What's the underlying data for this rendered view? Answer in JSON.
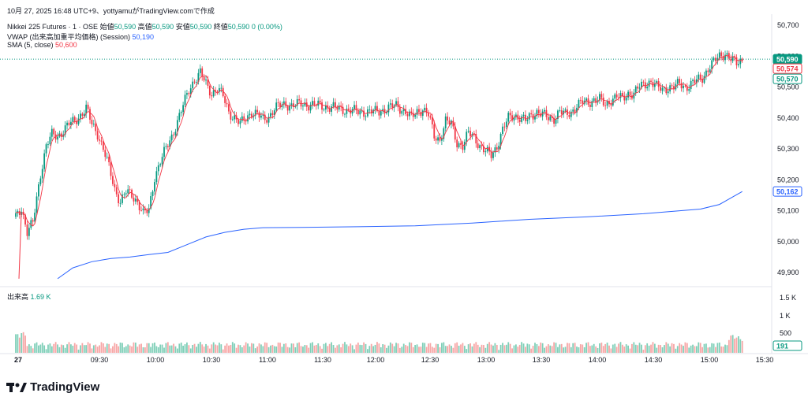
{
  "header": {
    "timestamp": "10月 27, 2025 16:48 UTC+9、yottyamuがTradingView.comで作成",
    "symbol": "Nikkei 225 Futures · 1 · OSE",
    "open_label": "始値",
    "open": "50,590",
    "high_label": "高値",
    "high": "50,590",
    "low_label": "安値",
    "low": "50,590",
    "close_label": "終値",
    "close": "50,590",
    "change": "0 (0.00%)",
    "vwap_label": "VWAP (出来高加重平均価格) (Session)",
    "vwap_value": "50,190",
    "sma_label": "SMA (5, close)",
    "sma_value": "50,600",
    "volume_label": "出来高",
    "volume_value": "1.69 K"
  },
  "brand": "TradingView",
  "colors": {
    "up": "#089981",
    "down": "#f23645",
    "vwap": "#2962ff",
    "sma": "#f23645"
  },
  "chart_data": {
    "type": "candlestick",
    "title": "Nikkei 225 Futures · 1 · OSE",
    "price_axis": {
      "ticks": [
        "50,700",
        "50,600",
        "50,500",
        "50,400",
        "50,300",
        "50,200",
        "50,100",
        "50,000",
        "49,900"
      ],
      "ylim": [
        49880,
        50715
      ]
    },
    "volume_axis": {
      "ticks": [
        "1.5 K",
        "1 K",
        "500"
      ]
    },
    "time_axis": [
      "27",
      "09:30",
      "10:00",
      "10:30",
      "11:00",
      "11:30",
      "12:00",
      "12:30",
      "13:00",
      "13:30",
      "14:00",
      "14:30",
      "15:00",
      "15:30"
    ],
    "badges": {
      "last_price": "50,590",
      "sma_tag": "50,574",
      "sma2_tag": "50,570",
      "vwap_tag": "50,162",
      "volume_tag": "191"
    },
    "close_path": [
      [
        "09:00",
        50080
      ],
      [
        "09:03",
        50110
      ],
      [
        "09:06",
        50030
      ],
      [
        "09:09",
        50060
      ],
      [
        "09:13",
        50220
      ],
      [
        "09:16",
        50310
      ],
      [
        "09:19",
        50345
      ],
      [
        "09:22",
        50340
      ],
      [
        "09:25",
        50360
      ],
      [
        "09:28",
        50380
      ],
      [
        "09:31",
        50390
      ],
      [
        "09:34",
        50410
      ],
      [
        "09:37",
        50430
      ],
      [
        "09:40",
        50380
      ],
      [
        "09:43",
        50350
      ],
      [
        "09:46",
        50300
      ],
      [
        "09:49",
        50240
      ],
      [
        "09:52",
        50170
      ],
      [
        "09:55",
        50130
      ],
      [
        "09:58",
        50160
      ],
      [
        "10:01",
        50150
      ],
      [
        "10:04",
        50130
      ],
      [
        "10:07",
        50090
      ],
      [
        "10:10",
        50100
      ],
      [
        "10:13",
        50210
      ],
      [
        "10:16",
        50260
      ],
      [
        "10:19",
        50300
      ],
      [
        "10:22",
        50340
      ],
      [
        "10:25",
        50390
      ],
      [
        "10:28",
        50440
      ],
      [
        "10:31",
        50490
      ],
      [
        "10:34",
        50525
      ],
      [
        "10:37",
        50545
      ],
      [
        "10:40",
        50510
      ],
      [
        "10:43",
        50480
      ],
      [
        "10:46",
        50495
      ],
      [
        "10:49",
        50470
      ],
      [
        "10:52",
        50420
      ],
      [
        "10:55",
        50400
      ],
      [
        "10:58",
        50380
      ],
      [
        "11:01",
        50400
      ],
      [
        "11:04",
        50420
      ],
      [
        "11:07",
        50410
      ],
      [
        "11:10",
        50395
      ],
      [
        "11:13",
        50405
      ],
      [
        "11:16",
        50430
      ],
      [
        "11:19",
        50440
      ],
      [
        "11:22",
        50445
      ],
      [
        "11:25",
        50440
      ],
      [
        "11:30",
        50445
      ],
      [
        "11:40",
        50440
      ],
      [
        "11:50",
        50430
      ],
      [
        "12:00",
        50420
      ],
      [
        "12:10",
        50420
      ],
      [
        "12:20",
        50440
      ],
      [
        "12:25",
        50420
      ],
      [
        "12:28",
        50400
      ],
      [
        "12:31",
        50420
      ],
      [
        "12:34",
        50430
      ],
      [
        "12:37",
        50410
      ],
      [
        "12:40",
        50340
      ],
      [
        "12:43",
        50330
      ],
      [
        "12:46",
        50390
      ],
      [
        "12:49",
        50380
      ],
      [
        "12:52",
        50320
      ],
      [
        "12:55",
        50310
      ],
      [
        "12:58",
        50350
      ],
      [
        "13:01",
        50340
      ],
      [
        "13:04",
        50310
      ],
      [
        "13:07",
        50290
      ],
      [
        "13:10",
        50280
      ],
      [
        "13:13",
        50310
      ],
      [
        "13:16",
        50360
      ],
      [
        "13:19",
        50400
      ],
      [
        "13:22",
        50410
      ],
      [
        "13:25",
        50400
      ],
      [
        "13:28",
        50390
      ],
      [
        "13:31",
        50410
      ],
      [
        "13:34",
        50420
      ],
      [
        "13:37",
        50410
      ],
      [
        "13:40",
        50400
      ],
      [
        "13:43",
        50400
      ],
      [
        "13:46",
        50420
      ],
      [
        "13:49",
        50410
      ],
      [
        "13:52",
        50420
      ],
      [
        "13:55",
        50440
      ],
      [
        "13:58",
        50450
      ],
      [
        "14:01",
        50450
      ],
      [
        "14:04",
        50460
      ],
      [
        "14:07",
        50460
      ],
      [
        "14:10",
        50440
      ],
      [
        "14:13",
        50460
      ],
      [
        "14:16",
        50470
      ],
      [
        "14:19",
        50460
      ],
      [
        "14:22",
        50480
      ],
      [
        "14:25",
        50480
      ],
      [
        "14:28",
        50500
      ],
      [
        "14:31",
        50510
      ],
      [
        "14:34",
        50520
      ],
      [
        "14:37",
        50500
      ],
      [
        "14:40",
        50490
      ],
      [
        "14:43",
        50500
      ],
      [
        "14:46",
        50500
      ],
      [
        "14:49",
        50510
      ],
      [
        "14:52",
        50500
      ],
      [
        "14:55",
        50510
      ],
      [
        "14:58",
        50520
      ],
      [
        "15:01",
        50530
      ],
      [
        "15:04",
        50560
      ],
      [
        "15:07",
        50580
      ],
      [
        "15:10",
        50600
      ],
      [
        "15:13",
        50610
      ],
      [
        "15:16",
        50590
      ],
      [
        "15:19",
        50575
      ],
      [
        "15:22",
        50590
      ]
    ],
    "vwap_path": [
      [
        "09:22",
        49880
      ],
      [
        "09:30",
        49915
      ],
      [
        "09:40",
        49935
      ],
      [
        "09:50",
        49945
      ],
      [
        "10:00",
        49950
      ],
      [
        "10:10",
        49958
      ],
      [
        "10:20",
        49965
      ],
      [
        "10:30",
        49990
      ],
      [
        "10:40",
        50015
      ],
      [
        "10:50",
        50030
      ],
      [
        "11:00",
        50040
      ],
      [
        "11:10",
        50045
      ],
      [
        "11:30",
        50046
      ],
      [
        "12:00",
        50048
      ],
      [
        "12:30",
        50051
      ],
      [
        "13:00",
        50060
      ],
      [
        "13:30",
        50072
      ],
      [
        "14:00",
        50080
      ],
      [
        "14:30",
        50090
      ],
      [
        "15:00",
        50105
      ],
      [
        "15:10",
        50120
      ],
      [
        "15:22",
        50162
      ]
    ]
  }
}
